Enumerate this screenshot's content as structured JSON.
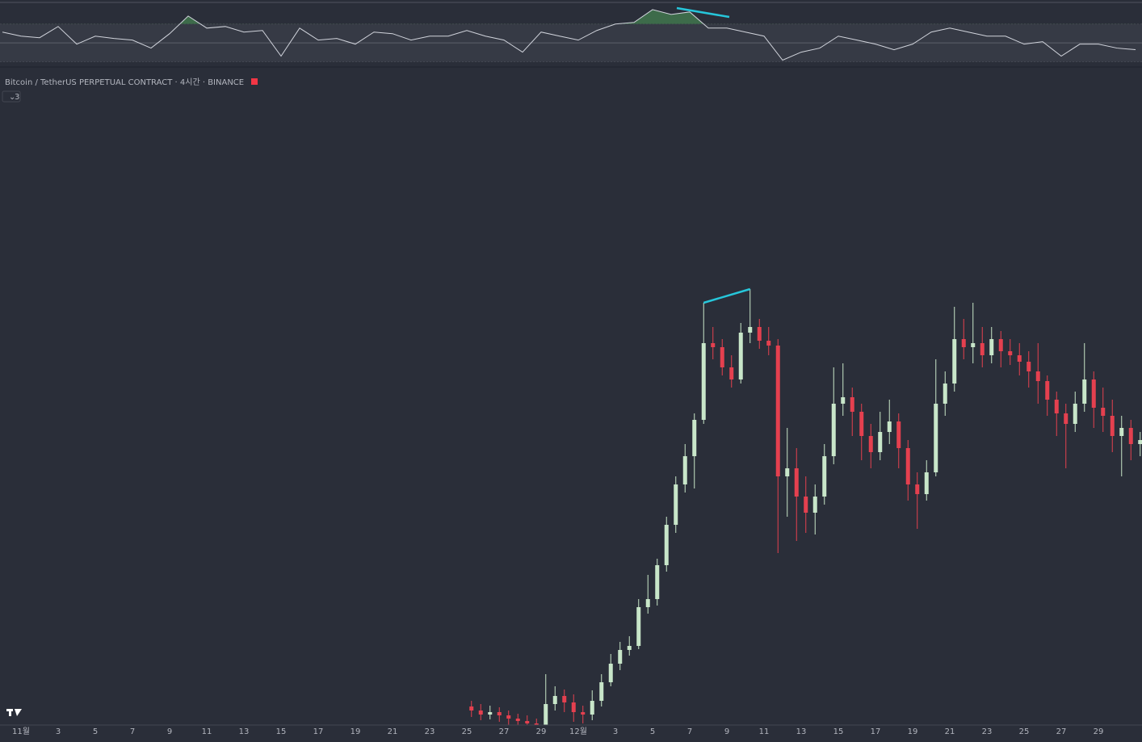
{
  "chart_data": {
    "type": "candlestick",
    "title": "Bitcoin / TetherUS PERPETUAL CONTRACT · 4시간 · BINANCE",
    "badge": "3",
    "x_tick_labels": [
      "11월",
      "3",
      "5",
      "7",
      "9",
      "11",
      "13",
      "15",
      "17",
      "19",
      "21",
      "23",
      "25",
      "27",
      "29",
      "12월",
      "3",
      "5",
      "7",
      "9",
      "11",
      "13",
      "15",
      "17",
      "19",
      "21",
      "23",
      "25",
      "27",
      "29"
    ],
    "ylim": [
      0,
      81
    ],
    "up_color": "#c8e6c9",
    "down_color": "#e5404f",
    "open": [
      2.5,
      2,
      1.5,
      1.8,
      1.4,
      1,
      0.7,
      0.4,
      0.2,
      2.8,
      3.8,
      3,
      1.8,
      1.5,
      3.2,
      5.5,
      7.8,
      9.5,
      10,
      14.8,
      15.8,
      20,
      25,
      30,
      33.5,
      38,
      47.5,
      47,
      44.5,
      43,
      48.8,
      49.5,
      47.8,
      47.2,
      31,
      32,
      28.5,
      26.5,
      28.5,
      33.5,
      40,
      40.8,
      39,
      36,
      34,
      36.5,
      37.8,
      34.5,
      30,
      28.8,
      31.5,
      40,
      42.5,
      48,
      47,
      47.5,
      46,
      48,
      46.5,
      46,
      45.2,
      44,
      42.8,
      40.5,
      38.8,
      37.5,
      40,
      43,
      39.5,
      38.5,
      36,
      37,
      35
    ],
    "high": [
      3.2,
      2.8,
      2.6,
      2.4,
      2,
      1.6,
      1.4,
      1,
      6.5,
      5,
      4.6,
      4,
      2.6,
      4.5,
      6.5,
      9,
      10.5,
      11.2,
      15.8,
      18.8,
      20.8,
      26,
      31,
      35,
      38.8,
      52.5,
      49.5,
      48,
      46,
      50,
      54.2,
      50.5,
      49.5,
      48,
      37,
      34.5,
      31,
      30,
      35,
      44.5,
      45,
      42,
      40,
      37.5,
      39,
      40.5,
      38.8,
      35.5,
      31.5,
      33,
      45.5,
      44,
      52,
      50.5,
      52.5,
      49.5,
      49.5,
      49,
      48,
      47.5,
      46.5,
      47.5,
      43.5,
      41.5,
      40,
      41.5,
      47.5,
      44,
      42,
      40.5,
      38.5,
      38,
      36.5
    ],
    "low": [
      1.2,
      0.8,
      0.9,
      0.6,
      0.2,
      0,
      -0.5,
      -1,
      -0.5,
      2,
      1.8,
      0.6,
      0.4,
      0.8,
      2.5,
      5,
      7,
      8.8,
      9.6,
      14,
      15,
      19.2,
      24,
      29,
      29.5,
      37.5,
      45.5,
      43.5,
      42,
      42.5,
      47.5,
      46.8,
      46,
      21.5,
      26,
      23,
      24,
      23.8,
      27.5,
      32.5,
      38.5,
      36,
      33,
      32,
      33,
      35,
      32,
      28,
      24.5,
      28,
      31,
      38.5,
      41.5,
      45.5,
      45,
      44.5,
      45,
      44.5,
      44.8,
      43.5,
      42,
      40,
      38.5,
      36,
      32,
      36.5,
      39,
      37,
      36.5,
      34,
      31,
      33,
      33.5
    ],
    "close": [
      2,
      1.5,
      1.8,
      1.4,
      1,
      0.7,
      0.4,
      0.2,
      2.8,
      3.8,
      3,
      1.8,
      1.5,
      3.2,
      5.5,
      7.8,
      9.5,
      10,
      14.8,
      15.8,
      20,
      25,
      30,
      33.5,
      38,
      47.5,
      47,
      44.5,
      43,
      48.8,
      49.5,
      47.8,
      47.2,
      31,
      32,
      28.5,
      26.5,
      28.5,
      33.5,
      40,
      40.8,
      39,
      36,
      34,
      36.5,
      37.8,
      34.5,
      30,
      28.8,
      31.5,
      40,
      42.5,
      48,
      47,
      47.5,
      46,
      48,
      46.5,
      46,
      45.2,
      44,
      42.8,
      40.5,
      38.8,
      37.5,
      40,
      43,
      39.5,
      38.5,
      36,
      37,
      35,
      35.5
    ],
    "rsi": {
      "values": [
        61.5,
        57.2,
        55.5,
        67.4,
        48.7,
        57.2,
        54.7,
        53,
        44.5,
        59.8,
        78.5,
        65.7,
        67.4,
        61.5,
        63.2,
        36,
        65.7,
        53,
        54.7,
        48.7,
        61.5,
        59.8,
        53,
        57.2,
        57.2,
        63.2,
        57.2,
        53,
        40.2,
        61.5,
        57.2,
        53,
        63.2,
        70,
        71.7,
        85.3,
        80.2,
        82.8,
        65.7,
        65.7,
        61.5,
        57.2,
        31.7,
        40.2,
        44.5,
        57.2,
        53,
        48.7,
        42.8,
        48.7,
        61.5,
        65.7,
        61.5,
        57.2,
        57.2,
        48.7,
        51.3,
        36,
        48.7,
        48.7,
        44.5,
        42.8
      ],
      "ylim": [
        27,
        95.5
      ],
      "bands": [
        30,
        50,
        70
      ],
      "color": "#d1d4dc",
      "overbought_fill": "#3d6b4a"
    }
  }
}
